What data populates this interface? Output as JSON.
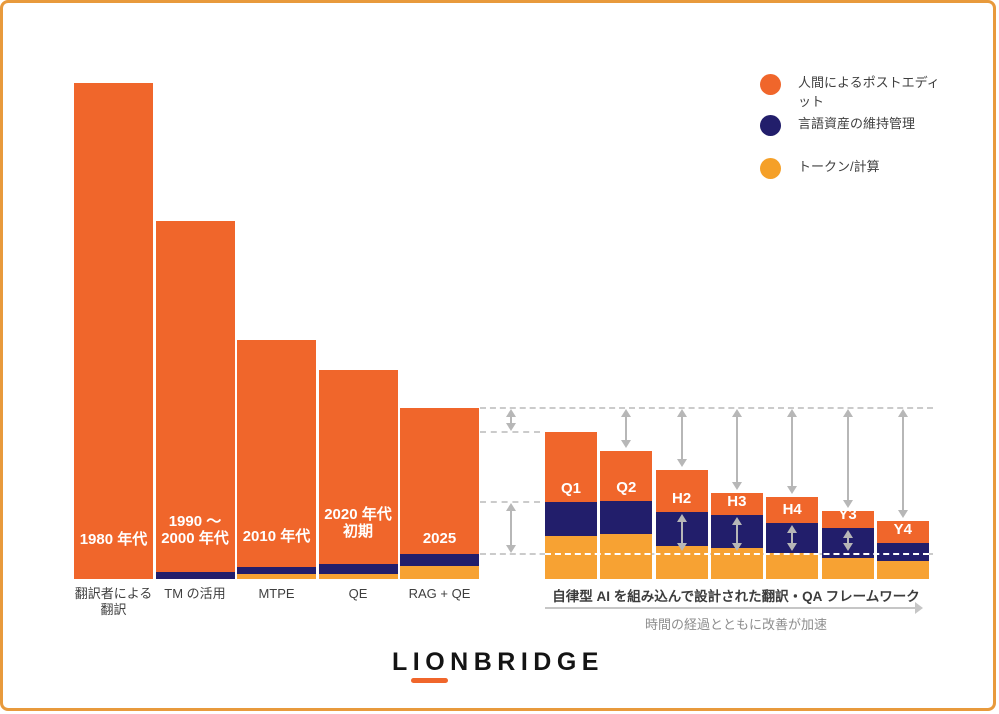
{
  "frame": {
    "border_color": "#E89A3C",
    "background": "#FFFFFF"
  },
  "legend": {
    "position": "top-right",
    "items": [
      {
        "id": "human",
        "label": "人間によるポストエディット",
        "color": "#F0662B"
      },
      {
        "id": "asset",
        "label": "言語資産の維持管理",
        "color": "#221E6B"
      },
      {
        "id": "tokens",
        "label": "トークン/計算",
        "color": "#F5A028"
      }
    ]
  },
  "chart_data": {
    "type": "bar",
    "stacked": true,
    "title": "",
    "unit": "relative effort/cost (estimated from pixel heights, baseline = 0)",
    "series_names": [
      "人間によるポストエディット",
      "言語資産の維持管理",
      "トークン/計算"
    ],
    "left_bars": [
      {
        "id": "1980s",
        "bar_label_lines": [
          "1980 年代"
        ],
        "axis_label": "翻訳者による翻訳",
        "human": 496,
        "asset": 0,
        "tokens": 0
      },
      {
        "id": "1990s-2000s",
        "bar_label_lines": [
          "1990 ～",
          "2000 年代"
        ],
        "axis_label": "TM の活用",
        "human": 351,
        "asset": 7,
        "tokens": 0
      },
      {
        "id": "2010s",
        "bar_label_lines": [
          "2010 年代"
        ],
        "axis_label": "MTPE",
        "human": 227,
        "asset": 7,
        "tokens": 5
      },
      {
        "id": "early-2020s",
        "bar_label_lines": [
          "2020 年代",
          "初期"
        ],
        "axis_label": "QE",
        "human": 194,
        "asset": 10,
        "tokens": 5
      },
      {
        "id": "2025",
        "bar_label_lines": [
          "2025"
        ],
        "axis_label": "RAG + QE",
        "human": 146,
        "asset": 12,
        "tokens": 13
      }
    ],
    "right_bars": [
      {
        "id": "Q1",
        "bar_label": "Q1",
        "human": 70,
        "asset": 34,
        "tokens": 43,
        "top_arrow": false,
        "navy_arrow": false
      },
      {
        "id": "Q2",
        "bar_label": "Q2",
        "human": 50,
        "asset": 33,
        "tokens": 45,
        "top_arrow": true,
        "navy_arrow": false
      },
      {
        "id": "H2",
        "bar_label": "H2",
        "human": 42,
        "asset": 34,
        "tokens": 33,
        "top_arrow": true,
        "navy_arrow": true
      },
      {
        "id": "H3",
        "bar_label": "H3",
        "human": 22,
        "asset": 33,
        "tokens": 31,
        "top_arrow": true,
        "navy_arrow": true
      },
      {
        "id": "H4",
        "bar_label": "H4",
        "human": 26,
        "asset": 30,
        "tokens": 26,
        "top_arrow": true,
        "navy_arrow": true
      },
      {
        "id": "Y3",
        "bar_label": "Y3",
        "human": 17,
        "asset": 30,
        "tokens": 21,
        "top_arrow": true,
        "navy_arrow": true
      },
      {
        "id": "Y4",
        "bar_label": "Y4",
        "human": 22,
        "asset": 18,
        "tokens": 18,
        "top_arrow": true,
        "navy_arrow": false
      }
    ],
    "colors": {
      "human": "#F0662B",
      "asset": "#221E6B",
      "tokens": "#F7A233"
    },
    "guides": {
      "dashed_reference_levels": [
        "top of 2025 bar (RAG + QE total)",
        "top of Q1 bar",
        "top of Q1 maintenance segment",
        "top of 2025 maintenance segment (white dashes across right bars)"
      ],
      "grid": "dashed horizontal reference lines, right side only"
    },
    "caption": "自律型 AI を組み込んで設計された翻訳・QA フレームワーク",
    "sub_caption": "時間の経過とともに改善が加速"
  },
  "footer": {
    "logo_text": "LIONBRIDGE"
  }
}
